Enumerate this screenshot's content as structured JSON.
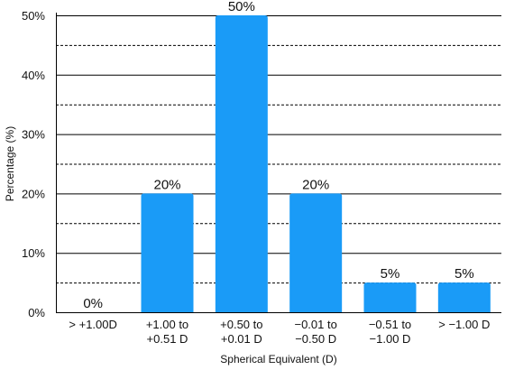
{
  "chart_data": {
    "type": "bar",
    "title": "",
    "xlabel": "Spherical Equivalent (D)",
    "ylabel": "Percentage (%)",
    "ylim": [
      0,
      50
    ],
    "y_ticks": [
      0,
      10,
      20,
      30,
      40,
      50
    ],
    "y_tick_labels": [
      "0%",
      "10%",
      "20%",
      "30%",
      "40%",
      "50%"
    ],
    "grid": {
      "major": "solid",
      "minor": "dashed",
      "minor_step": 5
    },
    "categories": [
      [
        "> +1.00D"
      ],
      [
        "+1.00 to",
        "+0.51 D"
      ],
      [
        "+0.50 to",
        "+0.01 D"
      ],
      [
        "−0.01 to",
        "−0.50 D"
      ],
      [
        "−0.51 to",
        "−1.00 D"
      ],
      [
        "> −1.00 D"
      ]
    ],
    "values": [
      0,
      20,
      50,
      20,
      5,
      5
    ],
    "data_labels": [
      "0%",
      "20%",
      "50%",
      "20%",
      "5%",
      "5%"
    ],
    "colors": {
      "bar": "#1A9BF7",
      "axis": "#000000",
      "grid": "#000000",
      "text": "#111111"
    }
  }
}
